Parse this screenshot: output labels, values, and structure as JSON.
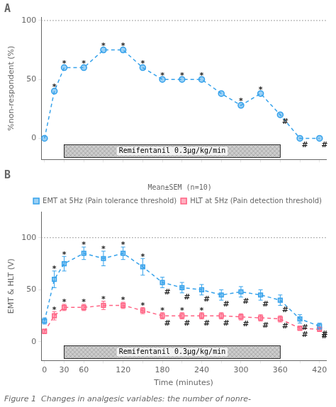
{
  "chart_data": [
    {
      "type": "line",
      "title": "A",
      "x": [
        0,
        15,
        30,
        60,
        90,
        120,
        150,
        180,
        210,
        240,
        270,
        300,
        330,
        360,
        390,
        420
      ],
      "series": [
        {
          "values": [
            0,
            40,
            60,
            60,
            75,
            75,
            60,
            50,
            50,
            50,
            38,
            28,
            38,
            20,
            0,
            0
          ],
          "marker": "circle",
          "line_style": "dashed",
          "annotations": [
            {
              "text": "*",
              "side": "above",
              "x": [
                15,
                30,
                60,
                90,
                120,
                150,
                180,
                210,
                240,
                300,
                330
              ]
            },
            {
              "text": "#",
              "side": "below",
              "x": [
                360,
                390,
                420
              ]
            }
          ]
        }
      ],
      "xlim": [
        -5,
        430
      ],
      "xticks": [
        0,
        30,
        60,
        90,
        120,
        150,
        180,
        210,
        240,
        270,
        300,
        330,
        360,
        390,
        420
      ],
      "ylabel": "%non-respondent (%)",
      "ylim": [
        -18,
        103
      ],
      "yticks": [
        0,
        50,
        100
      ],
      "tick_labels": "y",
      "grid": false,
      "reference_lines": [
        {
          "y": 100,
          "line_style": "dotted",
          "color": "#808080"
        }
      ],
      "bands": [
        {
          "text": "Remifentanil 0.3μg/kg/min",
          "x_start": 30,
          "x_end": 360,
          "color": "#cccccc"
        }
      ]
    },
    {
      "type": "line",
      "title": "B",
      "x": [
        0,
        15,
        30,
        60,
        90,
        120,
        150,
        180,
        210,
        240,
        270,
        300,
        330,
        360,
        390,
        420
      ],
      "series": [
        {
          "name": "EMT at 5Hz (Pain tolerance threshold)",
          "values": [
            20,
            60,
            75,
            85,
            80,
            85,
            72,
            57,
            52,
            50,
            45,
            48,
            45,
            40,
            22,
            15
          ],
          "errors": [
            3,
            8,
            7,
            6,
            7,
            6,
            8,
            5,
            5,
            5,
            5,
            5,
            5,
            5,
            4,
            3
          ],
          "marker": "square",
          "line_style": "dashed",
          "annotations": [
            {
              "text": "*",
              "side": "above",
              "x": [
                15,
                30,
                60,
                90,
                120,
                150
              ]
            },
            {
              "text": "#",
              "side": "below",
              "x": [
                180,
                210,
                240,
                270,
                300,
                330,
                360,
                390,
                420
              ]
            }
          ]
        },
        {
          "name": "HLT at 5Hz (Pain detection threshold)",
          "values": [
            10,
            25,
            33,
            33,
            35,
            35,
            30,
            25,
            25,
            25,
            25,
            24,
            23,
            22,
            13,
            12
          ],
          "errors": [
            2,
            4,
            3,
            3,
            4,
            3,
            3,
            3,
            3,
            3,
            3,
            3,
            3,
            3,
            2,
            2
          ],
          "marker": "square",
          "line_style": "dashed",
          "annotations": [
            {
              "text": "*",
              "side": "above",
              "x": [
                15,
                30,
                60,
                90,
                120,
                150,
                180,
                210,
                240
              ]
            },
            {
              "text": "#",
              "side": "below",
              "x": [
                180,
                210,
                240,
                270,
                300,
                330,
                360,
                390,
                420
              ]
            }
          ]
        }
      ],
      "legend": "upper right",
      "legend_title": "Mean±SEM (n=10)",
      "xlabel": "Time (minutes)",
      "xlim": [
        -5,
        430
      ],
      "xticks": [
        0,
        30,
        60,
        {
          "value": 90,
          "label": null
        },
        120,
        {
          "value": 150,
          "label": null
        },
        180,
        {
          "value": 210,
          "label": null
        },
        240,
        {
          "value": 270,
          "label": null
        },
        300,
        {
          "value": 330,
          "label": null
        },
        360,
        {
          "value": 390,
          "label": null
        },
        420
      ],
      "ylabel": "EMT & HLT (V)",
      "ylim": [
        -18,
        125
      ],
      "yticks": [
        0,
        50,
        100
      ],
      "grid": false,
      "reference_lines": [
        {
          "y": 100,
          "line_style": "dotted",
          "color": "#808080"
        }
      ],
      "bands": [
        {
          "text": "Remifentanil 0.3μg/kg/min",
          "x_start": 30,
          "x_end": 360,
          "color": "#cccccc"
        }
      ],
      "caption": "Figure 1  Changes in analgesic variables: the number of nonre-"
    }
  ]
}
